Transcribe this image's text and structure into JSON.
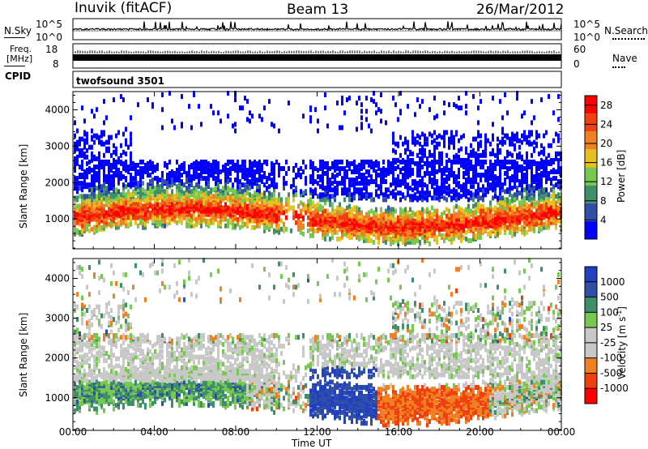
{
  "header": {
    "station_title": "Inuvik (fitACF)",
    "beam_title": "Beam 13",
    "date_title": "26/Mar/2012"
  },
  "noise_panel": {
    "left_label": "N.Sky",
    "right_label": "N.Search",
    "left_ticks": [
      "10^5",
      "10^0"
    ],
    "right_ticks": [
      "10^5",
      "10^0"
    ]
  },
  "freq_panel": {
    "left_label_line1": "Freq.",
    "left_label_line2": "[MHz]",
    "left_ticks": [
      "18",
      "8"
    ],
    "right_label": "Nave",
    "right_ticks": [
      "60",
      "0"
    ]
  },
  "cpid_panel": {
    "label": "CPID",
    "program": "twofsound 3501"
  },
  "colors": {
    "power_scale": [
      "#0000ff",
      "#3050a8",
      "#3f8f6a",
      "#77c850",
      "#e8c020",
      "#f08020",
      "#f04010",
      "#ff0000"
    ],
    "velocity_scale": [
      "#ff0000",
      "#f04010",
      "#f08020",
      "#c8c8c8",
      "#c8c8c8",
      "#77c850",
      "#3f8f6a",
      "#3050a8",
      "#2040c0"
    ]
  },
  "chart_data": [
    {
      "type": "heatmap",
      "name": "power",
      "ylabel": "Slant Range [km]",
      "ylim": [
        180,
        4500
      ],
      "yticks": [
        "1000",
        "2000",
        "3000",
        "4000"
      ],
      "colorbar_label": "Power [dB]",
      "colorbar_ticks": [
        "4",
        "8",
        "12",
        "16",
        "20",
        "24",
        "28"
      ],
      "colorbar_range": [
        0,
        30
      ]
    },
    {
      "type": "heatmap",
      "name": "velocity",
      "ylabel": "Slant Range [km]",
      "ylim": [
        180,
        4500
      ],
      "yticks": [
        "1000",
        "2000",
        "3000",
        "4000"
      ],
      "colorbar_label": "Velocity [m s",
      "colorbar_label_sup": "-1",
      "colorbar_label_end": "]",
      "colorbar_ticks": [
        "1000",
        "500",
        "100",
        "25",
        "-25",
        "-100",
        "-500",
        "-1000"
      ],
      "xlabel": "Time UT",
      "xticks": [
        "00:00",
        "04:00",
        "08:00",
        "12:00",
        "16:00",
        "20:00",
        "00:00"
      ]
    }
  ]
}
